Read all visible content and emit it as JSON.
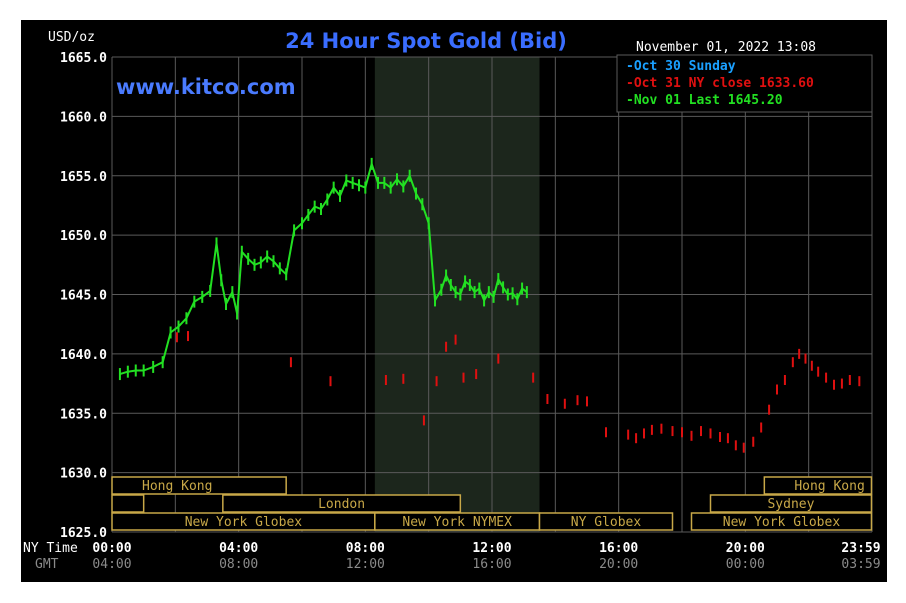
{
  "colors": {
    "background": "#000000",
    "grid": "#5a5a5a",
    "session_shade": "#1c261c",
    "title": "#3a6dff",
    "website": "#4a7bff",
    "axis_text": "#ffffff",
    "gmt_text": "#8a8a8a",
    "today": "#22e022",
    "previous": "#e01010",
    "sunday": "#1aa0ff",
    "session_box": "#c8a848"
  },
  "chart_data": {
    "type": "line",
    "title": "24 Hour Spot Gold (Bid)",
    "website": "www.kitco.com",
    "timestamp": "November 01, 2022 13:08",
    "unit_label": "USD/oz",
    "ylim": [
      1625,
      1665
    ],
    "yticks": [
      "1665.0",
      "1660.0",
      "1655.0",
      "1650.0",
      "1645.0",
      "1640.0",
      "1635.0",
      "1630.0",
      "1625.0"
    ],
    "xlim": [
      0,
      24
    ],
    "x_ticks": [
      {
        "hour": 0,
        "ny": "00:00",
        "gmt": "04:00"
      },
      {
        "hour": 4,
        "ny": "04:00",
        "gmt": "08:00"
      },
      {
        "hour": 8,
        "ny": "08:00",
        "gmt": "12:00"
      },
      {
        "hour": 12,
        "ny": "12:00",
        "gmt": "16:00"
      },
      {
        "hour": 16,
        "ny": "16:00",
        "gmt": "20:00"
      },
      {
        "hour": 20,
        "ny": "20:00",
        "gmt": "00:00"
      },
      {
        "hour": 23.983,
        "ny": "23:59",
        "gmt": "03:59"
      }
    ],
    "x_row_labels": {
      "ny": "NY Time",
      "gmt": "GMT"
    },
    "shaded_hours": [
      8.3,
      13.5
    ],
    "legend": [
      {
        "text": "-Oct 30 Sunday",
        "color_key": "sunday"
      },
      {
        "text": "-Oct 31 NY close 1633.60",
        "color_key": "previous"
      },
      {
        "text": "-Nov 01 Last 1645.20",
        "color_key": "today"
      }
    ],
    "series": [
      {
        "name": "Nov 01 Last 1645.20",
        "color_key": "today",
        "points": [
          [
            0.25,
            1638.3
          ],
          [
            0.5,
            1638.5
          ],
          [
            0.75,
            1638.6
          ],
          [
            1.0,
            1638.6
          ],
          [
            1.3,
            1638.9
          ],
          [
            1.6,
            1639.3
          ],
          [
            1.85,
            1641.8
          ],
          [
            2.1,
            1642.3
          ],
          [
            2.35,
            1643.0
          ],
          [
            2.6,
            1644.4
          ],
          [
            2.85,
            1644.8
          ],
          [
            3.1,
            1645.3
          ],
          [
            3.3,
            1649.3
          ],
          [
            3.45,
            1646.2
          ],
          [
            3.6,
            1644.2
          ],
          [
            3.8,
            1645.2
          ],
          [
            3.95,
            1643.4
          ],
          [
            4.1,
            1648.6
          ],
          [
            4.3,
            1648.0
          ],
          [
            4.5,
            1647.5
          ],
          [
            4.7,
            1647.7
          ],
          [
            4.9,
            1648.2
          ],
          [
            5.1,
            1647.8
          ],
          [
            5.3,
            1647.2
          ],
          [
            5.5,
            1646.7
          ],
          [
            5.75,
            1650.4
          ],
          [
            6.0,
            1651.0
          ],
          [
            6.2,
            1651.7
          ],
          [
            6.4,
            1652.4
          ],
          [
            6.6,
            1652.2
          ],
          [
            6.8,
            1653.0
          ],
          [
            7.0,
            1654.0
          ],
          [
            7.2,
            1653.3
          ],
          [
            7.4,
            1654.6
          ],
          [
            7.6,
            1654.4
          ],
          [
            7.8,
            1654.2
          ],
          [
            8.0,
            1654.0
          ],
          [
            8.2,
            1656.0
          ],
          [
            8.4,
            1654.4
          ],
          [
            8.6,
            1654.4
          ],
          [
            8.8,
            1654.0
          ],
          [
            9.0,
            1654.7
          ],
          [
            9.2,
            1654.1
          ],
          [
            9.4,
            1655.0
          ],
          [
            9.6,
            1653.5
          ],
          [
            9.8,
            1652.6
          ],
          [
            10.0,
            1651.0
          ],
          [
            10.2,
            1644.5
          ],
          [
            10.4,
            1645.4
          ],
          [
            10.55,
            1646.6
          ],
          [
            10.7,
            1645.8
          ],
          [
            10.85,
            1645.2
          ],
          [
            11.0,
            1645.0
          ],
          [
            11.15,
            1646.1
          ],
          [
            11.3,
            1645.8
          ],
          [
            11.45,
            1645.2
          ],
          [
            11.6,
            1645.5
          ],
          [
            11.75,
            1644.5
          ],
          [
            11.9,
            1645.2
          ],
          [
            12.05,
            1644.8
          ],
          [
            12.2,
            1646.3
          ],
          [
            12.35,
            1645.6
          ],
          [
            12.5,
            1645.0
          ],
          [
            12.65,
            1645.1
          ],
          [
            12.8,
            1644.6
          ],
          [
            12.95,
            1645.5
          ],
          [
            13.1,
            1645.2
          ]
        ]
      },
      {
        "name": "Oct 31 NY close 1633.60",
        "color_key": "previous",
        "points": [
          [
            2.05,
            1641.4
          ],
          [
            2.4,
            1641.5
          ],
          [
            5.65,
            1639.3
          ],
          [
            6.9,
            1637.7
          ],
          [
            8.65,
            1637.8
          ],
          [
            9.2,
            1637.9
          ],
          [
            9.85,
            1634.4
          ],
          [
            10.25,
            1637.7
          ],
          [
            10.55,
            1640.6
          ],
          [
            10.85,
            1641.2
          ],
          [
            11.1,
            1638.0
          ],
          [
            11.5,
            1638.3
          ],
          [
            12.2,
            1639.6
          ],
          [
            13.3,
            1638.0
          ],
          [
            13.75,
            1636.2
          ],
          [
            14.3,
            1635.8
          ],
          [
            14.7,
            1636.1
          ],
          [
            15.0,
            1636.0
          ],
          [
            15.6,
            1633.4
          ],
          [
            16.3,
            1633.2
          ],
          [
            16.55,
            1632.9
          ],
          [
            16.8,
            1633.3
          ],
          [
            17.05,
            1633.6
          ],
          [
            17.35,
            1633.7
          ],
          [
            17.7,
            1633.5
          ],
          [
            18.0,
            1633.4
          ],
          [
            18.3,
            1633.1
          ],
          [
            18.6,
            1633.5
          ],
          [
            18.9,
            1633.3
          ],
          [
            19.2,
            1633.0
          ],
          [
            19.45,
            1632.9
          ],
          [
            19.7,
            1632.3
          ],
          [
            19.95,
            1632.1
          ],
          [
            20.25,
            1632.6
          ],
          [
            20.5,
            1633.8
          ],
          [
            20.75,
            1635.3
          ],
          [
            21.0,
            1637.0
          ],
          [
            21.25,
            1637.8
          ],
          [
            21.5,
            1639.3
          ],
          [
            21.7,
            1640.0
          ],
          [
            21.9,
            1639.6
          ],
          [
            22.1,
            1639.0
          ],
          [
            22.3,
            1638.5
          ],
          [
            22.55,
            1638.0
          ],
          [
            22.8,
            1637.4
          ],
          [
            23.05,
            1637.5
          ],
          [
            23.3,
            1637.8
          ],
          [
            23.6,
            1637.7
          ]
        ]
      }
    ],
    "sessions": [
      {
        "label": "Hong Kong",
        "row": 0,
        "start": 0,
        "end": 5.5
      },
      {
        "label": "Hong Kong",
        "row": 0,
        "start": 20.6,
        "end": 23.983
      },
      {
        "label": "",
        "row": 1,
        "start": 0,
        "end": 1.0
      },
      {
        "label": "London",
        "row": 1,
        "start": 3.5,
        "end": 11.0
      },
      {
        "label": "Sydney",
        "row": 1,
        "start": 18.9,
        "end": 23.983
      },
      {
        "label": "New York Globex",
        "row": 2,
        "start": 0,
        "end": 8.3
      },
      {
        "label": "New York NYMEX",
        "row": 2,
        "start": 8.3,
        "end": 13.5
      },
      {
        "label": "NY Globex",
        "row": 2,
        "start": 13.5,
        "end": 17.7
      },
      {
        "label": "New York Globex",
        "row": 2,
        "start": 18.3,
        "end": 23.983
      }
    ]
  }
}
